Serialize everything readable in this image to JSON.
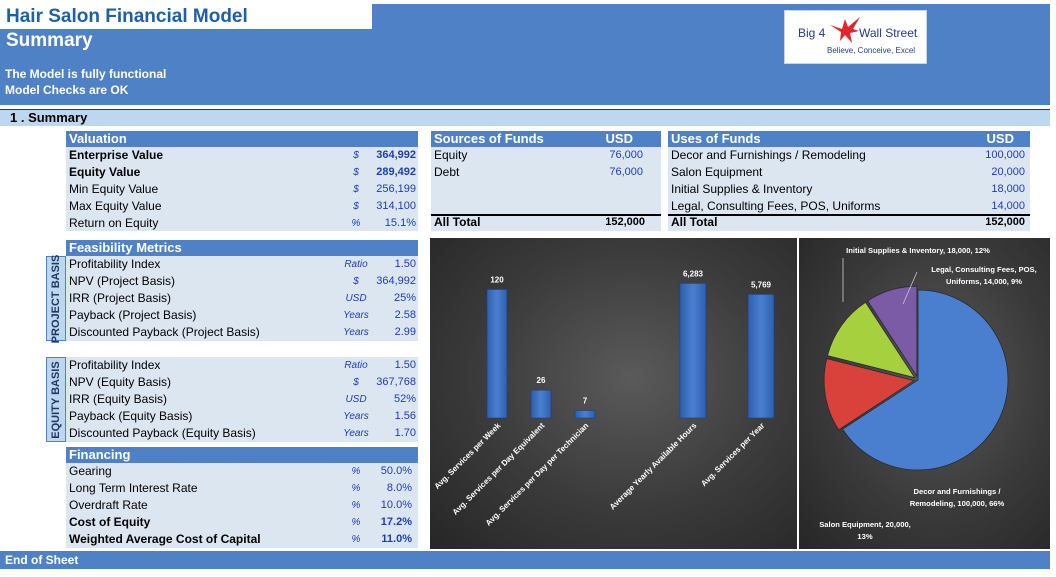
{
  "header": {
    "title": "Hair Salon Financial Model",
    "subtitle": "Summary",
    "note1": "The Model is fully functional",
    "note2": "Model Checks are OK",
    "logo_top": "Big 4",
    "logo_right": "Wall Street",
    "logo_tag": "Believe, Conceive, Excel"
  },
  "section": {
    "label": "1 . Summary"
  },
  "valuation": {
    "header": "Valuation",
    "rows": [
      {
        "label": "Enterprise Value",
        "unit": "$",
        "value": "364,992"
      },
      {
        "label": "Equity Value",
        "unit": "$",
        "value": "289,492"
      },
      {
        "label": "Min Equity Value",
        "unit": "$",
        "value": "256,199"
      },
      {
        "label": "Max Equity Value",
        "unit": "$",
        "value": "314,100"
      },
      {
        "label": "Return on Equity",
        "unit": "%",
        "value": "15.1%"
      }
    ]
  },
  "feasibility": {
    "header": "Feasibility Metrics",
    "project_tag": "PROJECT BASIS",
    "equity_tag": "EQUITY BASIS",
    "project_rows": [
      {
        "label": "Profitability Index",
        "unit": "Ratio",
        "value": "1.50"
      },
      {
        "label": "NPV (Project Basis)",
        "unit": "$",
        "value": "364,992"
      },
      {
        "label": "IRR (Project Basis)",
        "unit": "USD",
        "value": "25%"
      },
      {
        "label": "Payback  (Project Basis)",
        "unit": "Years",
        "value": "2.58"
      },
      {
        "label": "Discounted Payback  (Project Basis)",
        "unit": "Years",
        "value": "2.99"
      }
    ],
    "equity_rows": [
      {
        "label": "Profitability Index",
        "unit": "Ratio",
        "value": "1.50"
      },
      {
        "label": "NPV (Equity Basis)",
        "unit": "$",
        "value": "367,768"
      },
      {
        "label": "IRR (Equity Basis)",
        "unit": "USD",
        "value": "52%"
      },
      {
        "label": "Payback  (Equity Basis)",
        "unit": "Years",
        "value": "1.56"
      },
      {
        "label": "Discounted Payback  (Equity Basis)",
        "unit": "Years",
        "value": "1.70"
      }
    ]
  },
  "financing": {
    "header": "Financing",
    "rows": [
      {
        "label": "Gearing",
        "unit": "%",
        "value": "50.0%"
      },
      {
        "label": "Long Term Interest Rate",
        "unit": "%",
        "value": "8.0%"
      },
      {
        "label": "Overdraft Rate",
        "unit": "%",
        "value": "10.0%"
      },
      {
        "label": "Cost of Equity",
        "unit": "%",
        "value": "17.2%"
      },
      {
        "label": "Weighted Average Cost of Capital",
        "unit": "%",
        "value": "11.0%"
      }
    ]
  },
  "sources": {
    "header": "Sources of Funds",
    "currency": "USD",
    "rows": [
      {
        "label": "Equity",
        "value": "76,000"
      },
      {
        "label": "Debt",
        "value": "76,000"
      }
    ],
    "total_label": "All Total",
    "total_value": "152,000"
  },
  "uses": {
    "header": "Uses of Funds",
    "currency": "USD",
    "rows": [
      {
        "label": "Decor and Furnishings / Remodeling",
        "value": "100,000"
      },
      {
        "label": "Salon Equipment",
        "value": "20,000"
      },
      {
        "label": "Initial Supplies & Inventory",
        "value": "18,000"
      },
      {
        "label": "Legal, Consulting Fees, POS, Uniforms",
        "value": "14,000"
      }
    ],
    "total_label": "All Total",
    "total_value": "152,000"
  },
  "colors": {
    "header_blue": "#4f81c7",
    "bar_blue": "#4a7fd0",
    "pie_blue": "#4a7fd0",
    "pie_red": "#d9413b",
    "pie_green": "#a6d03e",
    "pie_purple": "#7b5aa6"
  },
  "chart_data": [
    {
      "type": "bar",
      "categories": [
        "Avg. Services per Week",
        "Avg. Services per Day Equivalent",
        "Avg. Services per Day per Technician"
      ],
      "values": [
        120,
        26,
        7
      ],
      "data_labels": [
        "120",
        "26",
        "7"
      ],
      "title": "",
      "xlabel": "",
      "ylabel": "",
      "ylim": [
        0,
        140
      ]
    },
    {
      "type": "bar",
      "categories": [
        "Average Yearly Available Hours",
        "Avg. Services per Year"
      ],
      "values": [
        6283,
        5769
      ],
      "data_labels": [
        "6,283",
        "5,769"
      ],
      "title": "",
      "xlabel": "",
      "ylabel": "",
      "ylim": [
        0,
        7000
      ]
    },
    {
      "type": "pie",
      "labels": [
        "Decor and Furnishings / Remodeling",
        "Salon Equipment",
        "Initial Supplies & Inventory",
        "Legal, Consulting Fees, POS, Uniforms"
      ],
      "values": [
        100000,
        20000,
        18000,
        14000
      ],
      "percents": [
        "66%",
        "13%",
        "12%",
        "9%"
      ],
      "data_labels": [
        [
          "Decor and Furnishings /",
          "Remodeling, 100,000, 66%"
        ],
        [
          "Salon Equipment, 20,000,",
          "13%"
        ],
        [
          "Initial Supplies & Inventory, 18,000, 12%"
        ],
        [
          "Legal, Consulting Fees, POS,",
          "Uniforms, 14,000, 9%"
        ]
      ],
      "title": ""
    }
  ],
  "footer": {
    "label": "End of Sheet"
  }
}
